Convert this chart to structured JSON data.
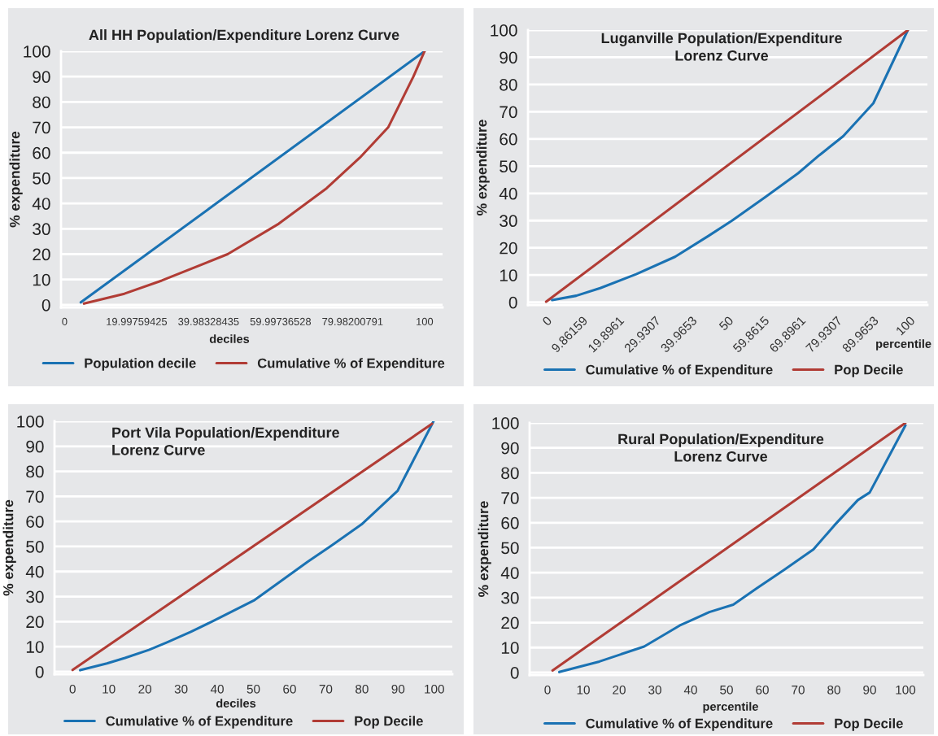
{
  "chart_data": [
    {
      "type": "line",
      "title": "All HH Population/Expenditure Lorenz Curve",
      "xlabel": "deciles",
      "ylabel": "% expenditure",
      "xlim": [
        -1,
        105
      ],
      "ylim": [
        -1,
        100
      ],
      "xticks": [
        0,
        19.99759425,
        39.98328435,
        59.99736528,
        79.98200791,
        100
      ],
      "yticks": [
        0,
        10,
        20,
        30,
        40,
        50,
        60,
        70,
        80,
        90,
        100
      ],
      "grid": "y",
      "legend": "bottom",
      "series": [
        {
          "name": "Population decile",
          "color": "#1a72b3",
          "x": [
            4.5,
            100
          ],
          "values": [
            1,
            100
          ]
        },
        {
          "name": "Cumulative % of Expenditure",
          "color": "#b13c35",
          "x": [
            5.4,
            16.6,
            27,
            45.3,
            59.5,
            72.8,
            82,
            89.9,
            96.9,
            100
          ],
          "values": [
            0.5,
            4.4,
            9.6,
            20,
            32,
            46,
            58,
            70,
            90,
            100
          ]
        }
      ]
    },
    {
      "type": "line",
      "title": "Luganville Population/Expenditure\nLorenz Curve",
      "xlabel": "percentile",
      "ylabel": "% expenditure",
      "xlim": [
        -5,
        105
      ],
      "ylim": [
        -1,
        100
      ],
      "xticks": [
        0,
        {
          "value": 9.86159,
          "label": "9.86159"
        },
        {
          "value": 19.8961,
          "label": "19.8961"
        },
        {
          "value": 29.9307,
          "label": "29.9307"
        },
        {
          "value": 39.9653,
          "label": "39.9653"
        },
        50,
        {
          "value": 59.8615,
          "label": "59.8615"
        },
        {
          "value": 69.8961,
          "label": "69.8961"
        },
        {
          "value": 79.9307,
          "label": "79.9307"
        },
        {
          "value": 89.9653,
          "label": "89.9653"
        },
        100
      ],
      "yticks": [
        0,
        10,
        20,
        30,
        40,
        50,
        60,
        70,
        80,
        90,
        100
      ],
      "grid": "y",
      "legend": "bottom",
      "series": [
        {
          "name": "Cumulative % of Expenditure",
          "color": "#1a72b3",
          "x": [
            1.65,
            8.3,
            14.9,
            24.8,
            35.5,
            44.6,
            51.2,
            60.3,
            69.4,
            75.2,
            81.8,
            90.1,
            99.6
          ],
          "values": [
            0.8,
            2.4,
            5.2,
            10.3,
            16.7,
            24.3,
            30,
            38.6,
            47.4,
            54,
            61,
            73.1,
            100
          ]
        },
        {
          "name": "Pop Decile",
          "color": "#b13c35",
          "x": [
            0,
            99.6
          ],
          "values": [
            0.2,
            100
          ]
        }
      ]
    },
    {
      "type": "line",
      "title": "Port Vila Population/Expenditure\nLorenz Curve",
      "xlabel": "deciles",
      "ylabel": "% expenditure",
      "xlim": [
        -5,
        105
      ],
      "ylim": [
        -1,
        100
      ],
      "xticks": [
        0,
        10,
        20,
        30,
        40,
        50,
        60,
        70,
        80,
        90,
        100
      ],
      "yticks": [
        0,
        10,
        20,
        30,
        40,
        50,
        60,
        70,
        80,
        90,
        100
      ],
      "grid": "y",
      "legend": "bottom",
      "series": [
        {
          "name": "Cumulative % of Expenditure",
          "color": "#1a72b3",
          "x": [
            2.1,
            9.5,
            14.5,
            21.1,
            26.1,
            32.7,
            39.4,
            44.3,
            50.1,
            57.6,
            65,
            71.7,
            79.9,
            89.9,
            99.8
          ],
          "values": [
            0.6,
            3.3,
            5.5,
            8.7,
            11.7,
            15.9,
            20.6,
            24.2,
            28.4,
            36.2,
            43.9,
            50.5,
            58.8,
            72.3,
            100
          ]
        },
        {
          "name": "Pop Decile",
          "color": "#b13c35",
          "x": [
            0,
            99.4
          ],
          "values": [
            0.7,
            99
          ]
        }
      ]
    },
    {
      "type": "line",
      "title": "Rural Population/Expenditure\nLorenz Curve",
      "xlabel": "percentile",
      "ylabel": "% expenditure",
      "xlim": [
        -5,
        105
      ],
      "ylim": [
        -1,
        100
      ],
      "xticks": [
        0,
        10,
        20,
        30,
        40,
        50,
        60,
        70,
        80,
        90,
        100
      ],
      "yticks": [
        0,
        10,
        20,
        30,
        40,
        50,
        60,
        70,
        80,
        90,
        100
      ],
      "grid": "y",
      "legend": "bottom",
      "series": [
        {
          "name": "Cumulative % of Expenditure",
          "color": "#1a72b3",
          "x": [
            3.3,
            14.5,
            20.3,
            27,
            36.9,
            45.2,
            51.9,
            58.5,
            66,
            74.3,
            80.1,
            86.7,
            90,
            100
          ],
          "values": [
            0.2,
            4.4,
            7.2,
            10.4,
            18.8,
            24.2,
            27.2,
            33.8,
            41,
            49.3,
            58.9,
            69.1,
            72.1,
            99
          ]
        },
        {
          "name": "Pop Decile",
          "color": "#b13c35",
          "x": [
            1.4,
            100
          ],
          "values": [
            0.8,
            100
          ]
        }
      ]
    }
  ]
}
